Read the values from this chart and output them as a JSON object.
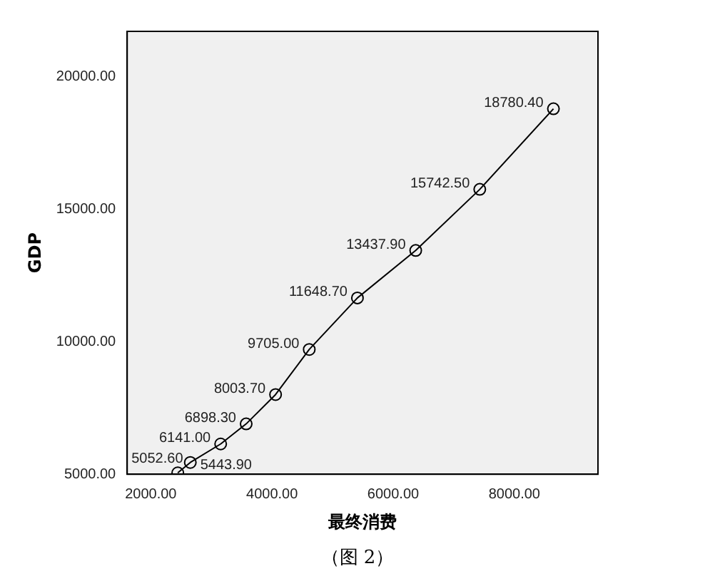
{
  "chart_data": {
    "type": "line",
    "xlabel": "最终消费",
    "ylabel": "GDP",
    "x": [
      2445,
      2652,
      3153,
      3574,
      4059,
      4615,
      5410,
      6372,
      7429,
      8645
    ],
    "series": [
      {
        "color": "#000000",
        "values": [
          5052.6,
          5443.9,
          6141.0,
          6898.3,
          8003.7,
          9705.0,
          11648.7,
          13437.9,
          15742.5,
          18780.4
        ],
        "value_labels": [
          "5052.60",
          "5443.90",
          "6141.00",
          "6898.30",
          "8003.70",
          "9705.00",
          "11648.70",
          "13437.90",
          "15742.50",
          "18780.40"
        ]
      }
    ],
    "xlim": [
      1610,
      9380
    ],
    "xticks": [
      {
        "value": 2000,
        "label": "2000.00"
      },
      {
        "value": 4000,
        "label": "4000.00"
      },
      {
        "value": 6000,
        "label": "6000.00"
      },
      {
        "value": 8000,
        "label": "8000.00"
      }
    ],
    "ylim": [
      5000,
      21700
    ],
    "yticks": [
      {
        "value": 5000,
        "label": "5000.00"
      },
      {
        "value": 10000,
        "label": "10000.00"
      },
      {
        "value": 15000,
        "label": "15000.00"
      },
      {
        "value": 20000,
        "label": "20000.00"
      }
    ],
    "marker": "circle",
    "line_style": "solid",
    "grid": false,
    "legend": false,
    "annotations": [
      "（图 2）"
    ]
  }
}
